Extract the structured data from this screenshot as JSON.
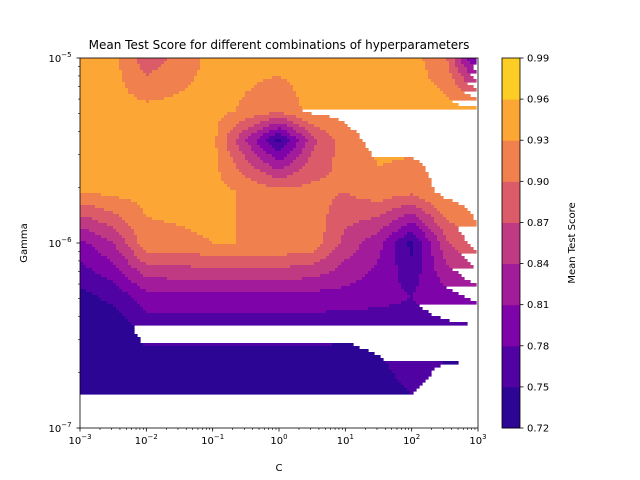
{
  "chart_data": {
    "type": "contourf",
    "title": "Mean Test Score for different combinations of hyperparameters",
    "xlabel": "C",
    "ylabel": "Gamma",
    "xscale": "log",
    "yscale": "log",
    "xlim": [
      0.001,
      1000
    ],
    "ylim": [
      1e-07,
      1e-05
    ],
    "x_ticks": [
      {
        "value": 0.001,
        "base": "10",
        "exp": "−3"
      },
      {
        "value": 0.01,
        "base": "10",
        "exp": "−2"
      },
      {
        "value": 0.1,
        "base": "10",
        "exp": "−1"
      },
      {
        "value": 1,
        "base": "10",
        "exp": "0"
      },
      {
        "value": 10,
        "base": "10",
        "exp": "1"
      },
      {
        "value": 100,
        "base": "10",
        "exp": "2"
      },
      {
        "value": 1000,
        "base": "10",
        "exp": "3"
      }
    ],
    "y_ticks": [
      {
        "value": 1e-07,
        "base": "10",
        "exp": "−7"
      },
      {
        "value": 1e-06,
        "base": "10",
        "exp": "−6"
      },
      {
        "value": 1e-05,
        "base": "10",
        "exp": "−5"
      }
    ],
    "colorbar": {
      "label": "Mean Test Score",
      "levels": [
        0.72,
        0.75,
        0.78,
        0.81,
        0.84,
        0.87,
        0.9,
        0.93,
        0.96,
        0.99
      ],
      "level_labels": [
        "0.72",
        "0.75",
        "0.78",
        "0.81",
        "0.84",
        "0.87",
        "0.90",
        "0.93",
        "0.96",
        "0.99"
      ],
      "colors": [
        "#2c0594",
        "#5102a3",
        "#7e03a8",
        "#a11b9b",
        "#c03a83",
        "#db5c68",
        "#f0804e",
        "#fca636",
        "#fccd25"
      ]
    },
    "gamma": [
      1e-07,
      1.9e-07,
      3.6e-07,
      5.2e-07,
      1e-06,
      1.9e-06,
      3.6e-06,
      5.2e-06,
      1e-05
    ],
    "C": [
      0.001,
      0.0032,
      0.01,
      0.1,
      1,
      3.2,
      10,
      31.6,
      100,
      316,
      1000
    ],
    "scores": [
      [
        0.73,
        0.73,
        0.73,
        0.73,
        0.73,
        0.73,
        0.73,
        0.73,
        0.73,
        0.73,
        0.73
      ],
      [
        0.73,
        0.73,
        0.73,
        0.73,
        0.73,
        0.73,
        0.73,
        0.74,
        0.76,
        0.74,
        0.74
      ],
      [
        0.73,
        0.73,
        0.765,
        0.765,
        0.765,
        0.765,
        0.76,
        0.765,
        0.77,
        0.775,
        0.78
      ],
      [
        0.74,
        0.76,
        0.8,
        0.8,
        0.8,
        0.8,
        0.8,
        0.79,
        0.78,
        0.8,
        0.82
      ],
      [
        0.8,
        0.84,
        0.92,
        0.93,
        0.93,
        0.92,
        0.86,
        0.82,
        0.74,
        0.86,
        0.92
      ],
      [
        0.93,
        0.94,
        0.94,
        0.94,
        0.91,
        0.91,
        0.9,
        0.92,
        0.91,
        0.94,
        0.95
      ],
      [
        0.96,
        0.94,
        0.94,
        0.94,
        0.74,
        0.86,
        0.92,
        0.94,
        0.94,
        0.94,
        0.94
      ],
      [
        0.94,
        0.94,
        0.94,
        0.94,
        0.91,
        0.94,
        0.94,
        0.94,
        0.94,
        0.94,
        0.94
      ],
      [
        0.94,
        0.94,
        0.88,
        0.94,
        0.94,
        0.94,
        0.94,
        0.94,
        0.94,
        0.91,
        0.76
      ]
    ]
  }
}
